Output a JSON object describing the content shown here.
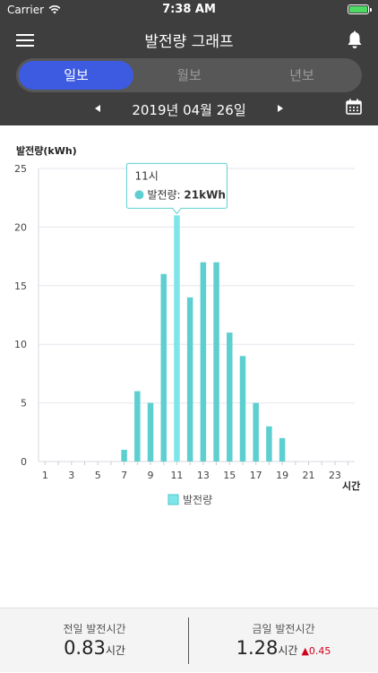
{
  "status": {
    "carrier": "Carrier",
    "time": "7:38 AM"
  },
  "nav": {
    "title": "발전량 그래프"
  },
  "tabs": [
    {
      "label": "일보",
      "active": true
    },
    {
      "label": "월보",
      "active": false
    },
    {
      "label": "년보",
      "active": false
    }
  ],
  "date": {
    "text": "2019년 04월 26일"
  },
  "tooltip": {
    "title": "11시",
    "series": "발전량",
    "value": "21kWh"
  },
  "legend": {
    "label": "발전량"
  },
  "footer": {
    "prev_label": "전일 발전시간",
    "prev_value": "0.83",
    "prev_unit": "시간",
    "today_label": "금일 발전시간",
    "today_value": "1.28",
    "today_unit": "시간",
    "today_delta": "0.45"
  },
  "colors": {
    "header": "#3e3e3e",
    "accent": "#3d5be0",
    "bar": "#5ecfd1",
    "bar_highlight": "#7ee6ea",
    "delta": "#d0021b"
  },
  "chart_data": {
    "type": "bar",
    "ylabel": "발전량(kWh)",
    "xlabel": "시간",
    "ylim": [
      0,
      25
    ],
    "yticks": [
      0,
      5,
      10,
      15,
      20,
      25
    ],
    "xticks": [
      1,
      3,
      5,
      7,
      9,
      11,
      13,
      15,
      17,
      19,
      21,
      23
    ],
    "categories": [
      1,
      2,
      3,
      4,
      5,
      6,
      7,
      8,
      9,
      10,
      11,
      12,
      13,
      14,
      15,
      16,
      17,
      18,
      19,
      20,
      21,
      22,
      23,
      24
    ],
    "series": [
      {
        "name": "발전량",
        "values": [
          0,
          0,
          0,
          0,
          0,
          0,
          1,
          6,
          5,
          16,
          21,
          14,
          17,
          17,
          11,
          9,
          5,
          3,
          2,
          0,
          0,
          0,
          0,
          0
        ]
      }
    ],
    "highlight": 11,
    "grid": true,
    "legend": "bottom"
  }
}
